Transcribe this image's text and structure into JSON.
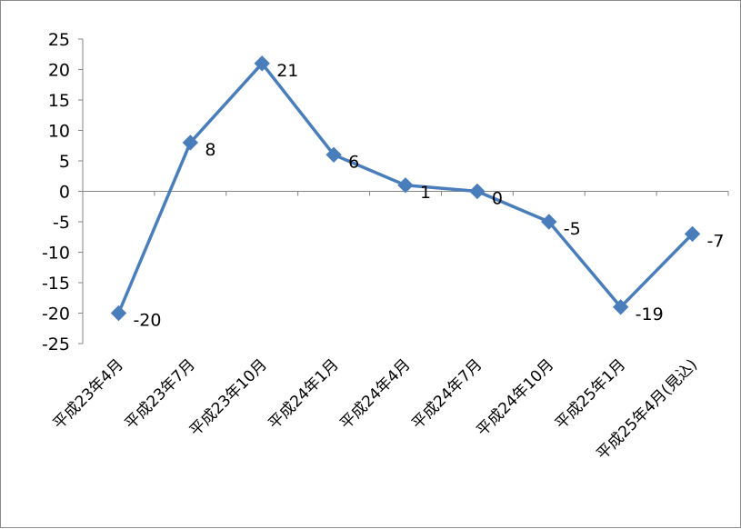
{
  "chart_data": {
    "type": "line",
    "categories": [
      "平成23年4月",
      "平成23年7月",
      "平成23年10月",
      "平成24年1月",
      "平成24年4月",
      "平成24年7月",
      "平成24年10月",
      "平成25年1月",
      "平成25年4月(見込)"
    ],
    "series": [
      {
        "values": [
          -20,
          8,
          21,
          6,
          1,
          0,
          -5,
          -19,
          -7
        ],
        "color": "#4a7ebb",
        "marker": "diamond"
      }
    ],
    "data_labels": [
      "-20",
      "8",
      "21",
      "6",
      "1",
      "0",
      "-5",
      "-19",
      "-7"
    ],
    "ylim": [
      -25,
      25
    ],
    "yticks": [
      25,
      20,
      15,
      10,
      5,
      0,
      -5,
      -10,
      -15,
      -20,
      -25
    ],
    "grid": false,
    "legend": "none",
    "title": "",
    "xlabel": "",
    "ylabel": ""
  }
}
